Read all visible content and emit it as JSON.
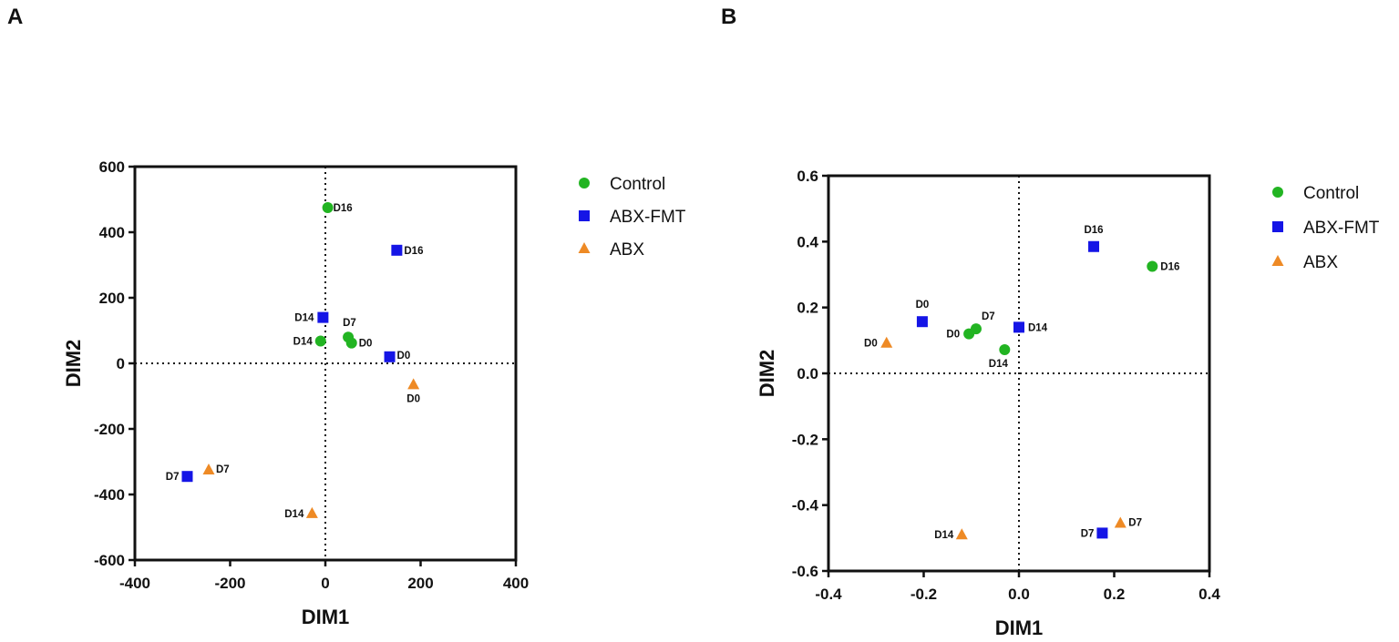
{
  "colors": {
    "Control": "#22b422",
    "ABX-FMT": "#1515e6",
    "ABX": "#ee8a25"
  },
  "markers": {
    "Control": "circle",
    "ABX-FMT": "square",
    "ABX": "triangle"
  },
  "legend": [
    "Control",
    "ABX-FMT",
    "ABX"
  ],
  "chart_data": [
    {
      "type": "scatter",
      "panel": "A",
      "xlabel": "DIM1",
      "ylabel": "DIM2",
      "xlim": [
        -400,
        400
      ],
      "ylim": [
        -600,
        600
      ],
      "xticks": [
        "-400",
        "-200",
        "0",
        "200",
        "400"
      ],
      "yticks": [
        "600",
        "400",
        "200",
        "0",
        "-200",
        "-400",
        "-600"
      ],
      "series": [
        {
          "name": "Control",
          "points": [
            {
              "label": "D16",
              "x": 5,
              "y": 475
            },
            {
              "label": "D7",
              "x": 48,
              "y": 80
            },
            {
              "label": "D0",
              "x": 55,
              "y": 62
            },
            {
              "label": "D14",
              "x": -10,
              "y": 68
            }
          ]
        },
        {
          "name": "ABX-FMT",
          "points": [
            {
              "label": "D16",
              "x": 150,
              "y": 345
            },
            {
              "label": "D14",
              "x": -5,
              "y": 140
            },
            {
              "label": "D0",
              "x": 135,
              "y": 20
            },
            {
              "label": "D7",
              "x": -290,
              "y": -345
            }
          ]
        },
        {
          "name": "ABX",
          "points": [
            {
              "label": "D0",
              "x": 185,
              "y": -65
            },
            {
              "label": "D7",
              "x": -245,
              "y": -325
            },
            {
              "label": "D14",
              "x": -28,
              "y": -458
            }
          ]
        }
      ]
    },
    {
      "type": "scatter",
      "panel": "B",
      "xlabel": "DIM1",
      "ylabel": "DIM2",
      "xlim": [
        -0.4,
        0.4
      ],
      "ylim": [
        -0.6,
        0.6
      ],
      "xticks": [
        "-0.4",
        "-0.2",
        "0.0",
        "0.2",
        "0.4"
      ],
      "yticks": [
        "0.6",
        "0.4",
        "0.2",
        "0.0",
        "-0.2",
        "-0.4",
        "-0.6"
      ],
      "series": [
        {
          "name": "Control",
          "points": [
            {
              "label": "D16",
              "x": 0.28,
              "y": 0.325
            },
            {
              "label": "D7",
              "x": -0.09,
              "y": 0.135
            },
            {
              "label": "D0",
              "x": -0.105,
              "y": 0.12
            },
            {
              "label": "D14",
              "x": -0.03,
              "y": 0.072
            }
          ]
        },
        {
          "name": "ABX-FMT",
          "points": [
            {
              "label": "D16",
              "x": 0.157,
              "y": 0.385
            },
            {
              "label": "D0",
              "x": -0.203,
              "y": 0.157
            },
            {
              "label": "D14",
              "x": 0.0,
              "y": 0.14
            },
            {
              "label": "D7",
              "x": 0.175,
              "y": -0.485
            }
          ]
        },
        {
          "name": "ABX",
          "points": [
            {
              "label": "D0",
              "x": -0.278,
              "y": 0.092
            },
            {
              "label": "D14",
              "x": -0.12,
              "y": -0.49
            },
            {
              "label": "D7",
              "x": 0.213,
              "y": -0.455
            }
          ]
        }
      ]
    }
  ]
}
